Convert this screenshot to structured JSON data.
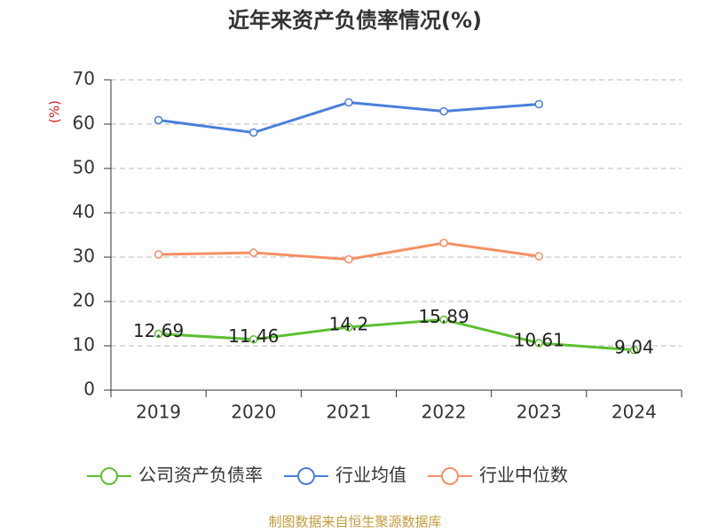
{
  "chart_data": {
    "type": "line",
    "title": "近年来资产负债率情况(%)",
    "y_label": "(%)",
    "categories": [
      "2019",
      "2020",
      "2021",
      "2022",
      "2023",
      "2024"
    ],
    "series": [
      {
        "name": "公司资产负债率",
        "color": "#5dbf2f",
        "values": [
          12.69,
          11.46,
          14.2,
          15.89,
          10.61,
          9.04
        ],
        "data_labels": true
      },
      {
        "name": "行业均值",
        "color": "#4a7fdc",
        "values": [
          60.9,
          58.1,
          64.9,
          62.9,
          64.5,
          null
        ]
      },
      {
        "name": "行业中位数",
        "color": "#f58f66",
        "values": [
          30.6,
          31.0,
          29.5,
          33.2,
          30.2,
          null
        ]
      }
    ],
    "ylim": [
      0,
      70
    ],
    "yticks": [
      0,
      10,
      20,
      30,
      40,
      50,
      60,
      70
    ],
    "grid": true,
    "source": "制图数据来自恒生聚源数据库"
  }
}
